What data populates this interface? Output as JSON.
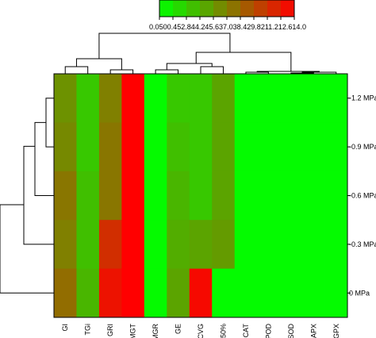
{
  "chart_data": {
    "type": "heatmap",
    "columns": [
      "GI",
      "TGi",
      "GRI",
      "MGT",
      "MGR",
      "GE",
      "CVG",
      "T50%",
      "CAT",
      "POD",
      "SOD",
      "APX",
      "GPX"
    ],
    "rows": [
      "-1.2 MPa",
      "-0.9 MPa",
      "-0.6 MPa",
      "-0.3 MPa",
      "0 MPa"
    ],
    "values": [
      [
        6.0,
        3.0,
        7.0,
        14.0,
        0.3,
        3.0,
        3.0,
        5.0,
        0.2,
        0.2,
        0.2,
        0.2,
        0.2
      ],
      [
        6.5,
        3.0,
        7.5,
        14.0,
        0.3,
        3.5,
        3.0,
        5.0,
        0.2,
        0.2,
        0.2,
        0.2,
        0.2
      ],
      [
        7.5,
        3.5,
        7.5,
        14.0,
        0.3,
        4.0,
        3.0,
        5.0,
        0.2,
        0.2,
        0.2,
        0.2,
        0.2
      ],
      [
        7.0,
        3.5,
        11.5,
        14.0,
        0.3,
        4.5,
        5.0,
        5.5,
        0.2,
        0.2,
        0.2,
        0.2,
        0.2
      ],
      [
        8.0,
        4.0,
        13.0,
        14.0,
        0.3,
        5.0,
        13.5,
        0.2,
        0.2,
        0.2,
        0.2,
        0.2,
        0.2
      ]
    ],
    "color_scale": {
      "low_color": "#00ff00",
      "high_color": "#ff0000",
      "min": 0.0,
      "max": 14.0,
      "tick_labels": [
        "0.0500",
        "1.45",
        "2.84",
        "4.24",
        "5.63",
        "7.03",
        "8.42",
        "9.82",
        "11.21",
        "12.61",
        "14.0"
      ],
      "tick_text": "0.0500.452.844.245.637.038.429.8211.212.614.0"
    },
    "dendrograms": {
      "rows": "left",
      "columns": "top"
    },
    "legend_placement": "top-center"
  }
}
